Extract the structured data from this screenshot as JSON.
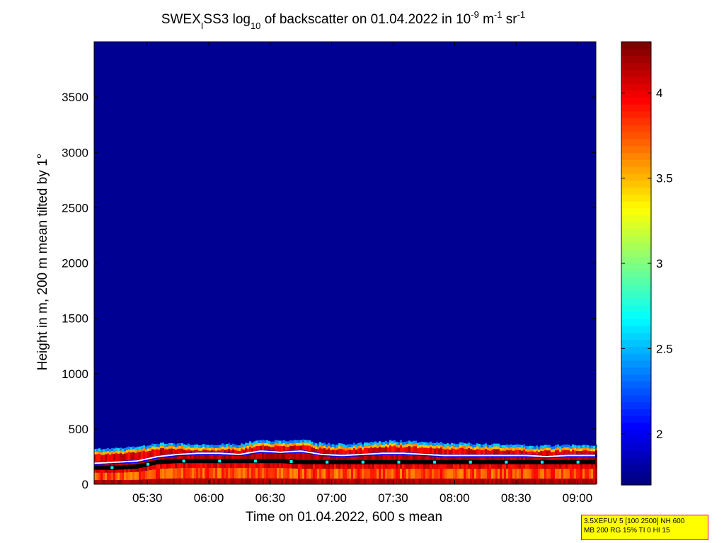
{
  "chart_data": {
    "type": "heatmap",
    "title": {
      "prefix": "SWEX",
      "prefix_sub": "I",
      "mid1": "SS3 log",
      "log_sub": "10",
      "mid2": " of backscatter on 01.04.2022 in 10",
      "exp1": "-9",
      "mid3": " m",
      "exp2": "-1",
      "mid4": " sr",
      "exp3": "-1"
    },
    "xlabel": "Time on 01.04.2022, 600 s mean",
    "ylabel": "Height in m, 200 m mean tilted by 1°",
    "x_ticks": [
      "05:30",
      "06:00",
      "06:30",
      "07:00",
      "07:30",
      "08:00",
      "08:30",
      "09:00"
    ],
    "x_tick_minutes": [
      330,
      360,
      390,
      420,
      450,
      480,
      510,
      540
    ],
    "xlim_minutes": [
      304,
      549
    ],
    "y_ticks": [
      "0",
      "500",
      "1000",
      "1500",
      "2000",
      "2500",
      "3000",
      "3500"
    ],
    "y_tick_values": [
      0,
      500,
      1000,
      1500,
      2000,
      2500,
      3000,
      3500
    ],
    "ylim": [
      0,
      4000
    ],
    "colorbar": {
      "range": [
        1.7,
        4.3
      ],
      "tick_values": [
        2,
        2.5,
        3,
        3.5,
        4
      ],
      "tick_labels": [
        "2",
        "2.5",
        "3",
        "3.5",
        "4"
      ],
      "colormap": "jet"
    },
    "boundary_layer": {
      "time_minutes": [
        305,
        315,
        325,
        335,
        345,
        355,
        365,
        375,
        385,
        395,
        405,
        415,
        425,
        435,
        445,
        455,
        465,
        475,
        485,
        495,
        505,
        515,
        525,
        535,
        545,
        549
      ],
      "layer_top_m": [
        320,
        330,
        340,
        370,
        370,
        360,
        360,
        360,
        400,
        390,
        400,
        370,
        360,
        370,
        390,
        390,
        380,
        370,
        370,
        360,
        360,
        350,
        350,
        350,
        350,
        350
      ],
      "white_line_m": [
        190,
        200,
        210,
        250,
        270,
        280,
        280,
        270,
        300,
        290,
        300,
        270,
        260,
        270,
        280,
        280,
        270,
        260,
        260,
        260,
        260,
        260,
        250,
        260,
        260,
        260
      ],
      "black_marker_m": [
        150,
        150,
        160,
        200,
        210,
        210,
        210,
        210,
        210,
        210,
        200,
        200,
        200,
        200,
        200,
        200,
        200,
        200,
        200,
        200,
        200,
        200,
        200,
        200,
        200,
        200
      ]
    },
    "background_value": 1.75
  },
  "info_box": {
    "line1": "3.5XEFUV 5 [100 2500] NH 600",
    "line2": "MB 200 RG 15% TI 0 HI 15"
  }
}
